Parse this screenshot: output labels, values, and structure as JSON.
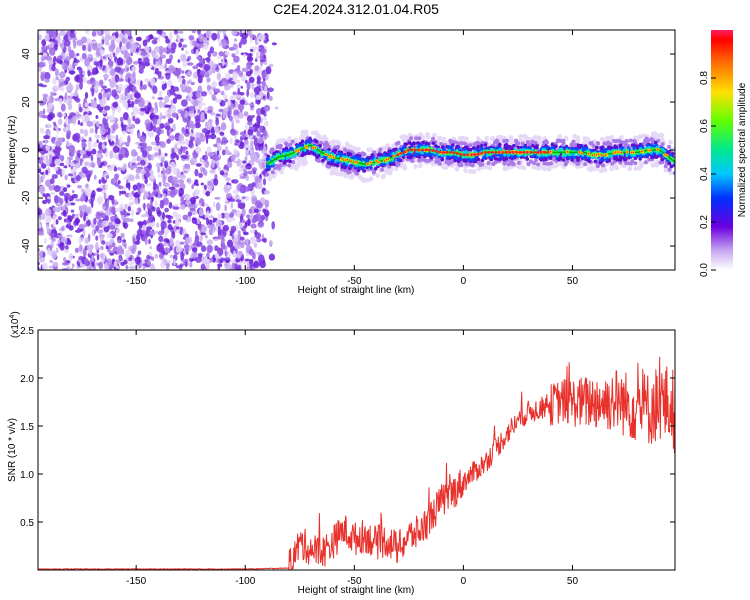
{
  "title": "C2E4.2024.312.01.04.R05",
  "chart_data": [
    {
      "type": "heatmap",
      "xlabel": "Height of straight line (km)",
      "ylabel": "Frequency (Hz)",
      "xlim": [
        -195,
        97
      ],
      "ylim": [
        -50,
        50
      ],
      "x_ticks": [
        -150,
        -100,
        -50,
        0,
        50
      ],
      "x_tick_labels": [
        "-150",
        "-100",
        "-50",
        "0",
        "50"
      ],
      "y_ticks": [
        -40,
        -20,
        0,
        20,
        40
      ],
      "y_tick_labels": [
        "-40",
        "-20",
        "0",
        "20",
        "40"
      ],
      "noise_region_x": [
        -195,
        -90
      ],
      "signal_region_x": [
        -90,
        97
      ],
      "ridge": {
        "x": [
          -90,
          -85,
          -80,
          -75,
          -70,
          -65,
          -60,
          -55,
          -50,
          -45,
          -40,
          -35,
          -30,
          -25,
          -20,
          -15,
          -10,
          -5,
          0,
          5,
          10,
          20,
          30,
          40,
          50,
          55,
          60,
          65,
          70,
          75,
          80,
          85,
          90,
          97
        ],
        "frequency_hz": [
          -6,
          -3,
          -2,
          0,
          2,
          -1,
          -3,
          -4,
          -5,
          -6,
          -5,
          -4,
          -2,
          0,
          0,
          0,
          -1,
          -1,
          -2,
          -2,
          -1,
          -1,
          -1,
          -1,
          -1,
          -1,
          -2,
          -2,
          -1,
          -1,
          -1,
          0,
          0,
          -5
        ]
      },
      "colorbar": {
        "label": "Normalized spectral amplitude",
        "range": [
          0,
          1
        ],
        "ticks": [
          0,
          0.2,
          0.4,
          0.6,
          0.8
        ],
        "tick_labels": [
          "0.0",
          "0.2",
          "0.4",
          "0.6",
          "0.8"
        ]
      },
      "grid": false
    },
    {
      "type": "line",
      "xlabel": "Height of straight line (km)",
      "ylabel": "SNR (10 * v/v)",
      "y_multiplier": "(x10",
      "y_multiplier_exp": "4",
      "xlim": [
        -195,
        97
      ],
      "ylim": [
        0,
        2.5
      ],
      "x_ticks": [
        -150,
        -100,
        -50,
        0,
        50
      ],
      "x_tick_labels": [
        "-150",
        "-100",
        "-50",
        "0",
        "50"
      ],
      "y_ticks": [
        0.5,
        1,
        1.5,
        2,
        2.5
      ],
      "y_tick_labels": [
        "0.5",
        "1.0",
        "1.5",
        "2.0",
        "2.5"
      ],
      "series": [
        {
          "color": "#e8312b",
          "x": [
            -195,
            -150,
            -100,
            -80,
            -75,
            -70,
            -65,
            -60,
            -55,
            -50,
            -45,
            -40,
            -35,
            -30,
            -25,
            -20,
            -15,
            -10,
            -5,
            0,
            5,
            10,
            15,
            20,
            25,
            30,
            35,
            40,
            45,
            50,
            55,
            60,
            65,
            70,
            75,
            80,
            85,
            90,
            95,
            97
          ],
          "values": [
            0.01,
            0.01,
            0.01,
            0.02,
            0.28,
            0.22,
            0.18,
            0.28,
            0.42,
            0.32,
            0.36,
            0.28,
            0.31,
            0.22,
            0.35,
            0.4,
            0.55,
            0.72,
            0.8,
            0.92,
            1.02,
            1.12,
            1.27,
            1.42,
            1.56,
            1.65,
            1.68,
            1.72,
            1.76,
            1.75,
            1.74,
            1.76,
            1.75,
            1.78,
            1.72,
            1.7,
            1.68,
            1.75,
            1.7,
            1.65
          ]
        }
      ],
      "grid": false
    }
  ]
}
